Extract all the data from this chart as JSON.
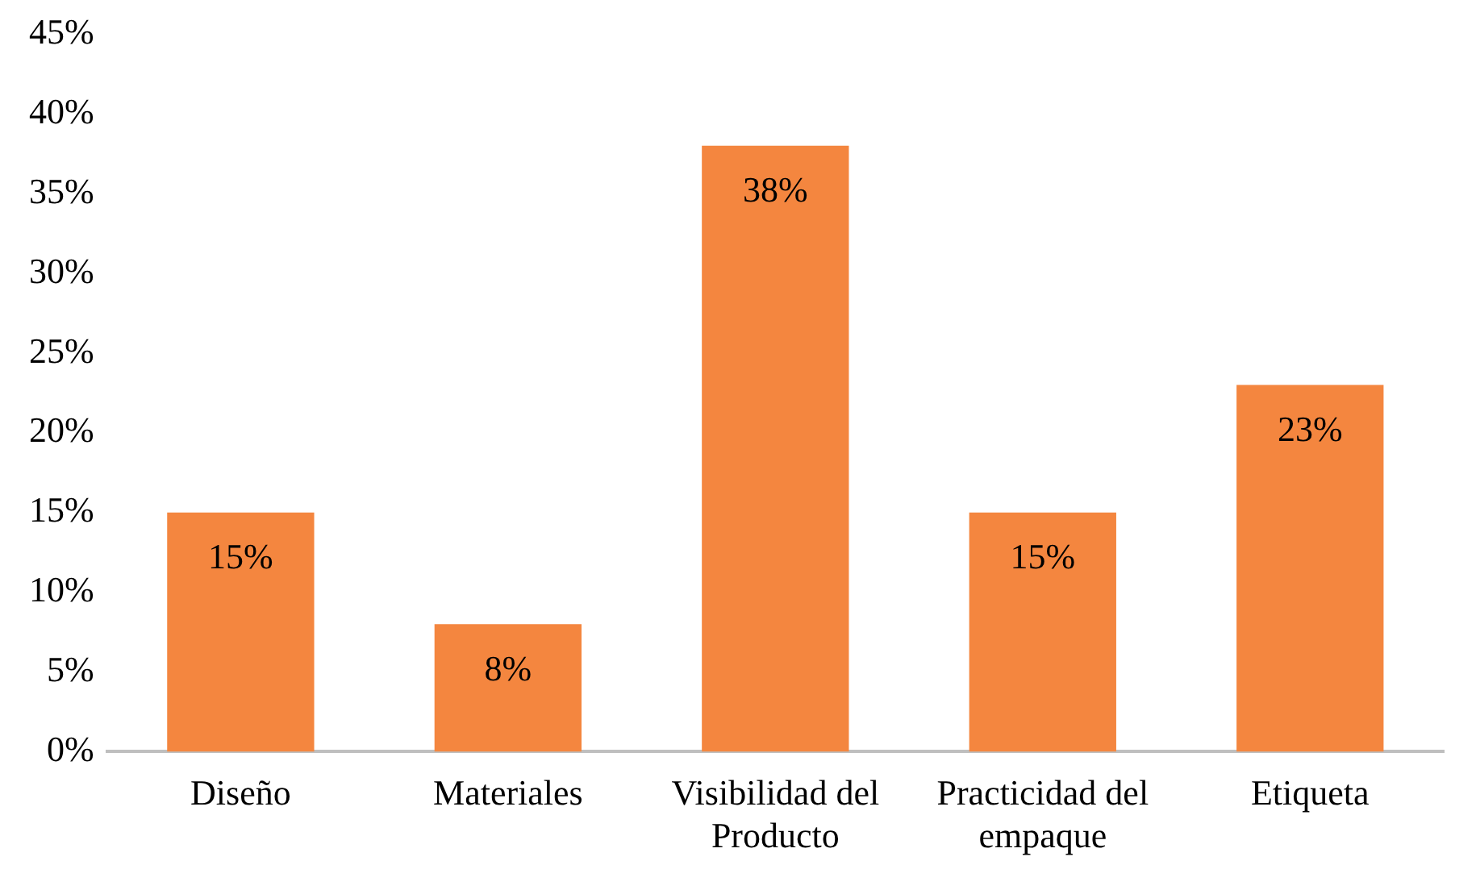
{
  "chart_data": {
    "type": "bar",
    "categories": [
      "Diseño",
      "Materiales",
      "Visibilidad del Producto",
      "Practicidad del empaque",
      "Etiqueta"
    ],
    "values": [
      15,
      8,
      38,
      15,
      23
    ],
    "color": "#f4863f",
    "ylim": [
      0,
      45
    ],
    "yticks": [
      {
        "value": 0,
        "label": "0%"
      },
      {
        "value": 5,
        "label": "5%"
      },
      {
        "value": 10,
        "label": "10%"
      },
      {
        "value": 15,
        "label": "15%"
      },
      {
        "value": 20,
        "label": "20%"
      },
      {
        "value": 25,
        "label": "25%"
      },
      {
        "value": 30,
        "label": "30%"
      },
      {
        "value": 35,
        "label": "35%"
      },
      {
        "value": 40,
        "label": "40%"
      },
      {
        "value": 45,
        "label": "45%"
      }
    ],
    "value_labels": [
      "15%",
      "8%",
      "38%",
      "15%",
      "23%"
    ],
    "grid": false,
    "legend": false
  }
}
